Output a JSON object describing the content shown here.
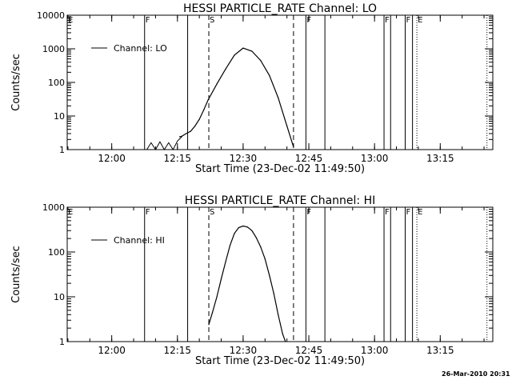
{
  "footer": {
    "timestamp": "26-Mar-2010 20:31"
  },
  "chart_data": [
    {
      "type": "line",
      "title": "HESSI PARTICLE_RATE Channel: LO",
      "xlabel": "Start Time (23-Dec-02 11:49:50)",
      "ylabel": "Counts/sec",
      "yscale": "log",
      "ylim": [
        1,
        10000
      ],
      "yticks": [
        1,
        10,
        100,
        1000,
        10000
      ],
      "ytick_labels": [
        "1",
        "10",
        "100",
        "1000",
        "10000"
      ],
      "xlim": [
        "11:49:50",
        "13:27:00"
      ],
      "xticks": [
        "12:00",
        "12:15",
        "12:30",
        "12:45",
        "13:00",
        "13:15"
      ],
      "legend": {
        "position": "top-left",
        "entries": [
          "Channel: LO"
        ]
      },
      "series": [
        {
          "name": "Channel: LO",
          "x": [
            "12:15:30",
            "12:16:00",
            "12:17:00",
            "12:18:00",
            "12:19:00",
            "12:20:00",
            "12:21:00",
            "12:22:00",
            "12:24:00",
            "12:26:00",
            "12:28:00",
            "12:30:00",
            "12:32:00",
            "12:34:00",
            "12:36:00",
            "12:38:00",
            "12:40:00",
            "12:41:30"
          ],
          "values": [
            2.4,
            2.5,
            3.0,
            3.5,
            5,
            8,
            15,
            30,
            90,
            250,
            650,
            1050,
            850,
            450,
            160,
            35,
            5,
            1.2
          ]
        }
      ],
      "noise_segment": {
        "x": [
          "12:08:00",
          "12:09:00",
          "12:10:00",
          "12:11:00",
          "12:12:00",
          "12:13:00",
          "12:14:00",
          "12:15:00",
          "12:16:00"
        ],
        "values": [
          1,
          1.6,
          1,
          1.7,
          1,
          1.6,
          1,
          1.8,
          2.4
        ]
      },
      "markers": [
        {
          "label": "F",
          "time": "12:07:30",
          "style": "solid"
        },
        {
          "label": "",
          "time": "12:17:20",
          "style": "solid"
        },
        {
          "label": "S",
          "time": "12:22:10",
          "style": "dashed"
        },
        {
          "label": "",
          "time": "12:41:30",
          "style": "dashed"
        },
        {
          "label": "F",
          "time": "12:44:20",
          "style": "solid"
        },
        {
          "label": "",
          "time": "12:48:40",
          "style": "solid"
        },
        {
          "label": "F",
          "time": "13:02:10",
          "style": "solid"
        },
        {
          "label": "",
          "time": "13:03:40",
          "style": "solid"
        },
        {
          "label": "F",
          "time": "13:07:00",
          "style": "solid"
        },
        {
          "label": "",
          "time": "13:08:40",
          "style": "solid"
        },
        {
          "label": "E",
          "time": "13:09:40",
          "style": "dotted"
        },
        {
          "label": "",
          "time": "13:25:40",
          "style": "dotted"
        }
      ],
      "corner_label": "E"
    },
    {
      "type": "line",
      "title": "HESSI PARTICLE_RATE Channel: HI",
      "xlabel": "Start Time (23-Dec-02 11:49:50)",
      "ylabel": "Counts/sec",
      "yscale": "log",
      "ylim": [
        1,
        1000
      ],
      "yticks": [
        1,
        10,
        100,
        1000
      ],
      "ytick_labels": [
        "1",
        "10",
        "100",
        "1000"
      ],
      "xlim": [
        "11:49:50",
        "13:27:00"
      ],
      "xticks": [
        "12:00",
        "12:15",
        "12:30",
        "12:45",
        "13:00",
        "13:15"
      ],
      "legend": {
        "position": "top-left",
        "entries": [
          "Channel: HI"
        ]
      },
      "series": [
        {
          "name": "Channel: HI",
          "x": [
            "12:22:10",
            "12:23:00",
            "12:24:00",
            "12:25:00",
            "12:26:00",
            "12:27:00",
            "12:28:00",
            "12:29:00",
            "12:30:00",
            "12:31:00",
            "12:32:00",
            "12:33:00",
            "12:34:00",
            "12:35:00",
            "12:36:00",
            "12:37:00",
            "12:38:00",
            "12:39:00",
            "12:39:40"
          ],
          "values": [
            2.4,
            4.5,
            10,
            25,
            60,
            140,
            260,
            350,
            380,
            360,
            300,
            210,
            130,
            70,
            30,
            12,
            4,
            1.5,
            1
          ]
        }
      ],
      "markers": [
        {
          "label": "F",
          "time": "12:07:30",
          "style": "solid"
        },
        {
          "label": "",
          "time": "12:17:20",
          "style": "solid"
        },
        {
          "label": "S",
          "time": "12:22:10",
          "style": "dashed"
        },
        {
          "label": "",
          "time": "12:41:30",
          "style": "dashed"
        },
        {
          "label": "F",
          "time": "12:44:20",
          "style": "solid"
        },
        {
          "label": "",
          "time": "12:48:40",
          "style": "solid"
        },
        {
          "label": "F",
          "time": "13:02:10",
          "style": "solid"
        },
        {
          "label": "",
          "time": "13:03:40",
          "style": "solid"
        },
        {
          "label": "F",
          "time": "13:07:00",
          "style": "solid"
        },
        {
          "label": "",
          "time": "13:08:40",
          "style": "solid"
        },
        {
          "label": "E",
          "time": "13:09:40",
          "style": "dotted"
        },
        {
          "label": "",
          "time": "13:25:40",
          "style": "dotted"
        }
      ],
      "corner_label": "E"
    }
  ]
}
